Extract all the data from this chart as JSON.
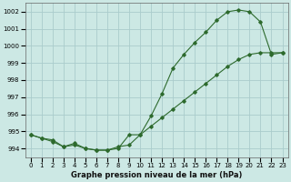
{
  "title": "Graphe pression niveau de la mer (hPa)",
  "bg_color": "#cce8e4",
  "grid_color": "#aacccc",
  "line_color": "#2d6a2d",
  "xlim": [
    -0.5,
    23.5
  ],
  "ylim": [
    993.5,
    1002.5
  ],
  "yticks": [
    994,
    995,
    996,
    997,
    998,
    999,
    1000,
    1001,
    1002
  ],
  "xticks": [
    0,
    1,
    2,
    3,
    4,
    5,
    6,
    7,
    8,
    9,
    10,
    11,
    12,
    13,
    14,
    15,
    16,
    17,
    18,
    19,
    20,
    21,
    22,
    23
  ],
  "series1_x": [
    0,
    1,
    2,
    3,
    4,
    5,
    6,
    7,
    8,
    9,
    10,
    11,
    12,
    13,
    14,
    15,
    16,
    17,
    18,
    19,
    20,
    21,
    22,
    23
  ],
  "series1_y": [
    994.8,
    994.6,
    994.5,
    994.1,
    994.3,
    994.0,
    993.9,
    993.9,
    994.1,
    994.2,
    994.8,
    995.9,
    997.2,
    998.7,
    999.5,
    1000.2,
    1000.8,
    1001.5,
    1002.0,
    1002.1,
    1002.0,
    1001.4,
    999.5,
    999.6
  ],
  "series2_x": [
    0,
    1,
    2,
    3,
    4,
    5,
    6,
    7,
    8,
    9,
    10,
    11,
    12,
    13,
    14,
    15,
    16,
    17,
    18,
    19,
    20,
    21,
    22,
    23
  ],
  "series2_y": [
    994.8,
    994.6,
    994.4,
    994.1,
    994.2,
    994.0,
    993.9,
    993.9,
    994.0,
    994.8,
    994.8,
    995.3,
    995.8,
    996.3,
    996.8,
    997.3,
    997.8,
    998.3,
    998.8,
    999.2,
    999.5,
    999.6,
    999.6,
    999.6
  ]
}
